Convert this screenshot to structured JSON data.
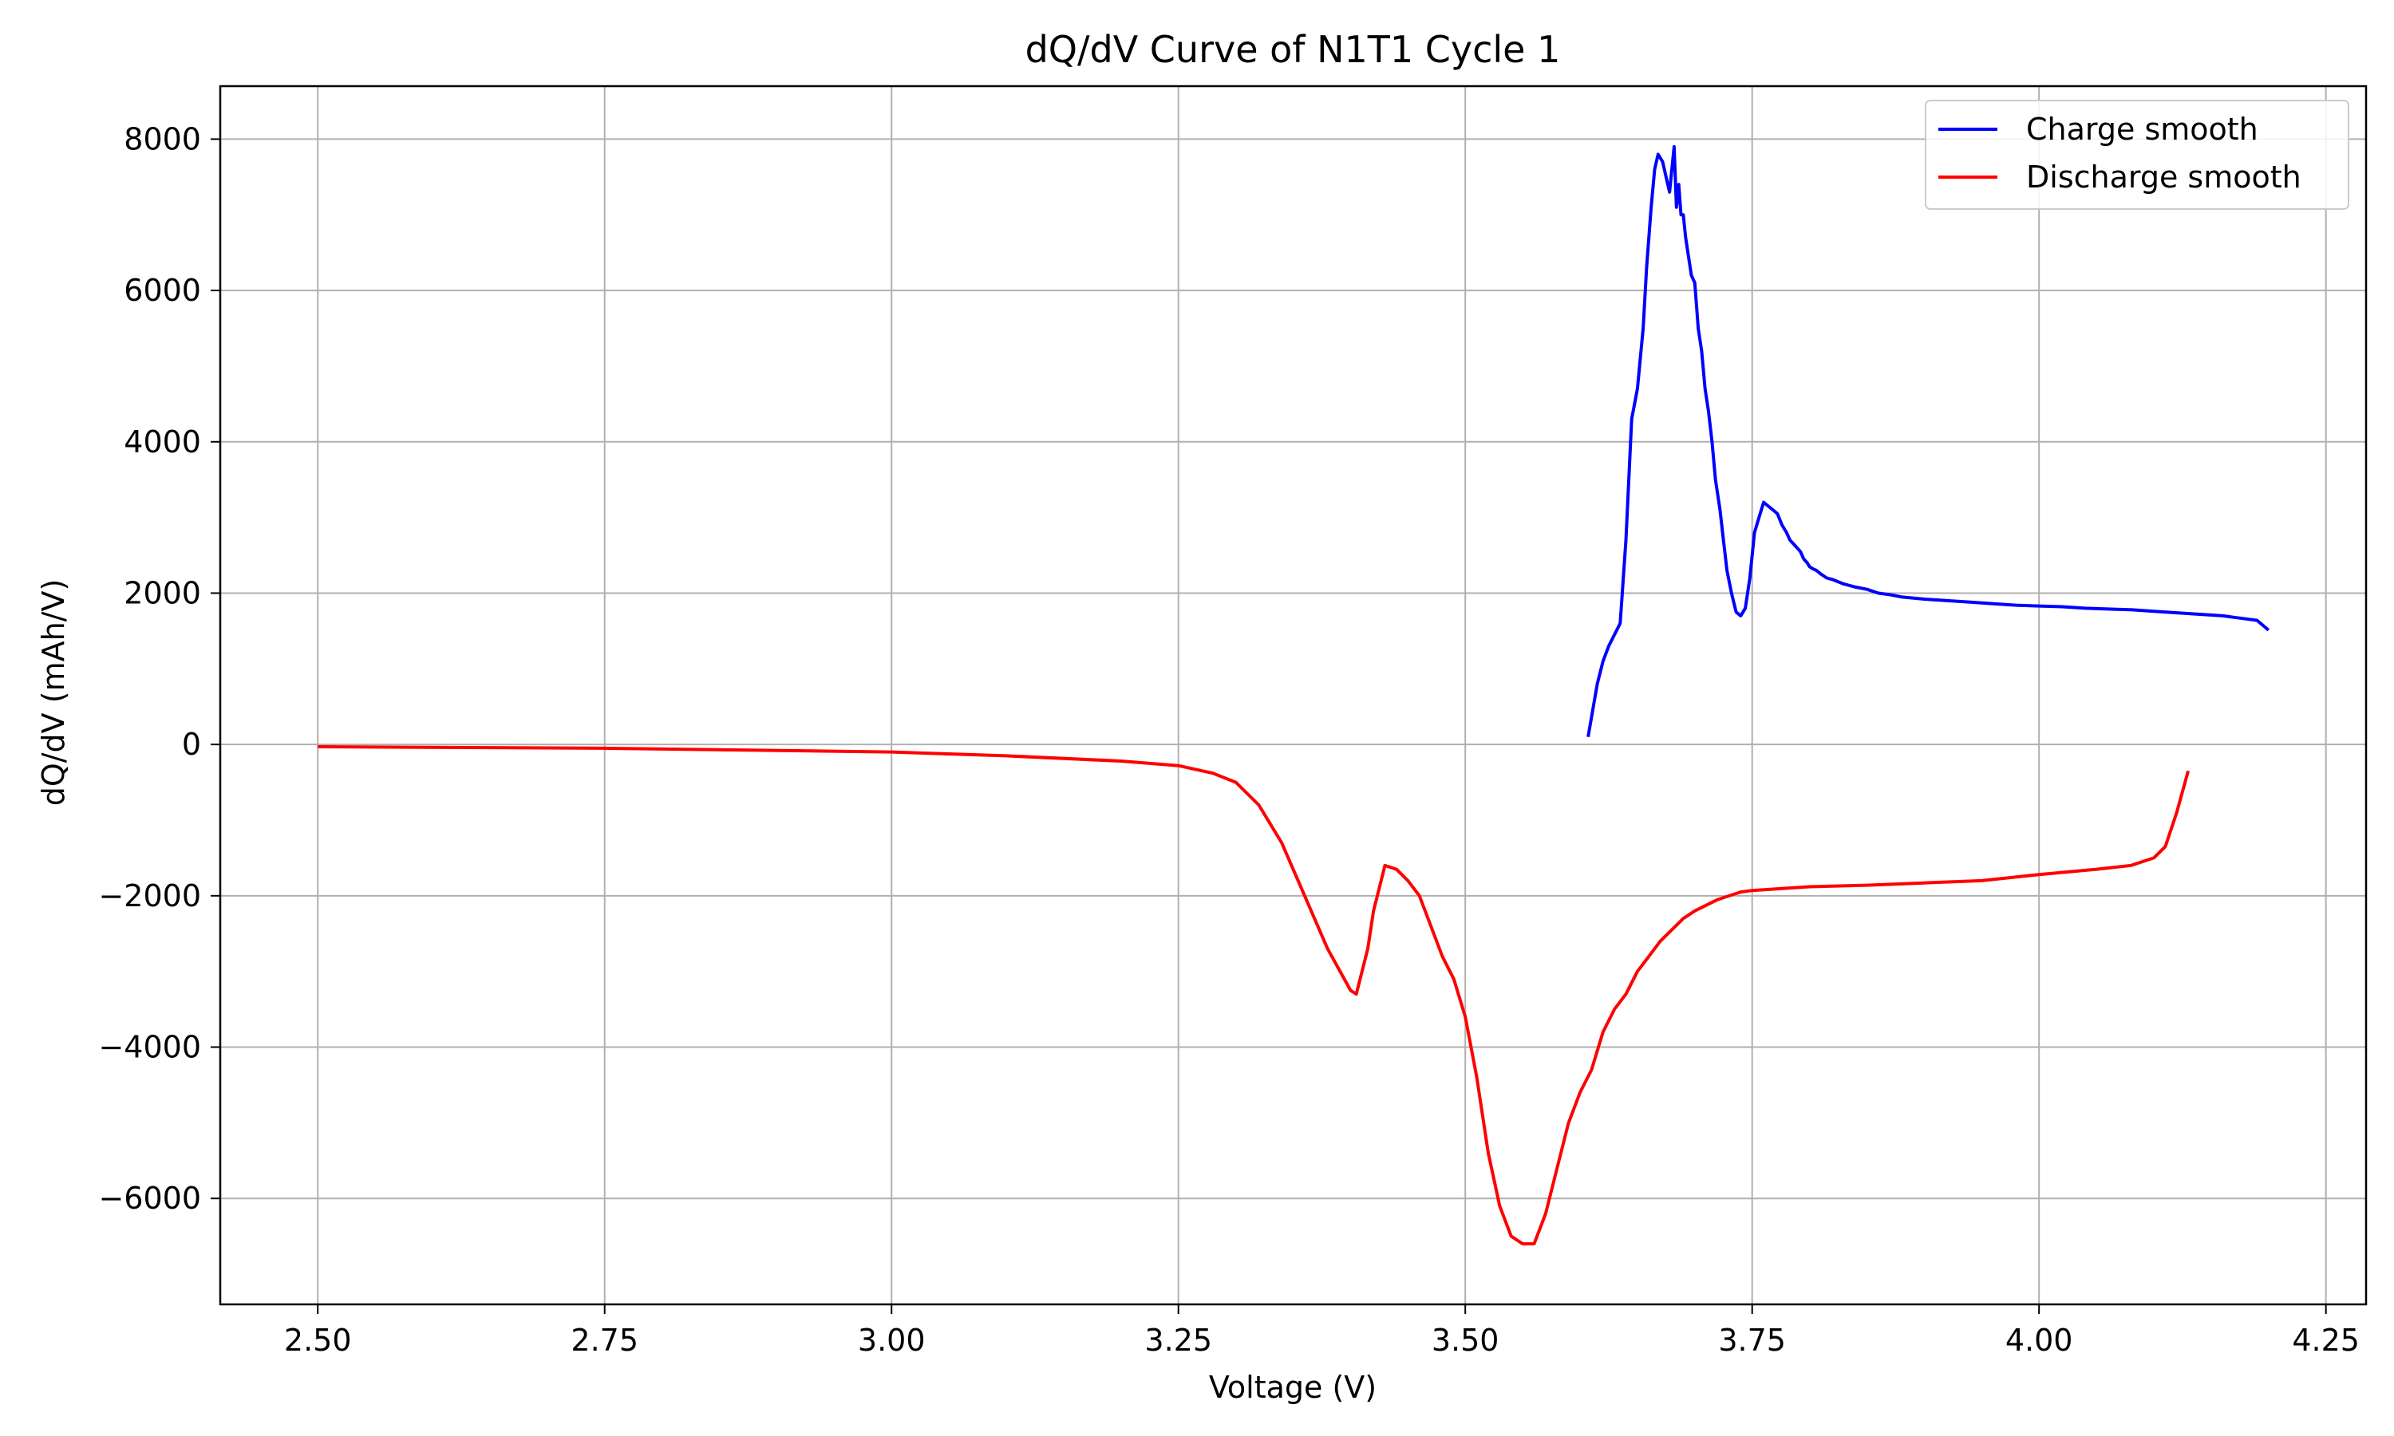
{
  "chart_data": {
    "type": "line",
    "title": "dQ/dV Curve of N1T1 Cycle 1",
    "xlabel": "Voltage (V)",
    "ylabel": "dQ/dV (mAh/V)",
    "xlim": [
      2.415,
      4.285
    ],
    "ylim": [
      -7400,
      8700
    ],
    "xticks": [
      2.5,
      2.75,
      3.0,
      3.25,
      3.5,
      3.75,
      4.0,
      4.25
    ],
    "xtick_labels": [
      "2.50",
      "2.75",
      "3.00",
      "3.25",
      "3.50",
      "3.75",
      "4.00",
      "4.25"
    ],
    "yticks": [
      -6000,
      -4000,
      -2000,
      0,
      2000,
      4000,
      6000,
      8000
    ],
    "ytick_labels": [
      "−6000",
      "−4000",
      "−2000",
      "0",
      "2000",
      "4000",
      "6000",
      "8000"
    ],
    "grid": true,
    "legend_position": "top-right",
    "series": [
      {
        "name": "Charge smooth",
        "color": "#0000ff",
        "x": [
          3.607,
          3.615,
          3.62,
          3.625,
          3.635,
          3.64,
          3.645,
          3.65,
          3.655,
          3.658,
          3.662,
          3.665,
          3.668,
          3.672,
          3.675,
          3.678,
          3.682,
          3.684,
          3.686,
          3.688,
          3.69,
          3.692,
          3.694,
          3.697,
          3.7,
          3.703,
          3.706,
          3.709,
          3.712,
          3.715,
          3.718,
          3.722,
          3.725,
          3.728,
          3.732,
          3.736,
          3.74,
          3.744,
          3.748,
          3.752,
          3.756,
          3.76,
          3.764,
          3.768,
          3.772,
          3.776,
          3.78,
          3.783,
          3.786,
          3.789,
          3.792,
          3.795,
          3.798,
          3.8,
          3.803,
          3.806,
          3.81,
          3.815,
          3.82,
          3.825,
          3.83,
          3.84,
          3.85,
          3.86,
          3.87,
          3.88,
          3.9,
          3.92,
          3.94,
          3.96,
          3.98,
          4.0,
          4.02,
          4.04,
          4.06,
          4.08,
          4.1,
          4.12,
          4.14,
          4.16,
          4.17,
          4.18,
          4.19,
          4.2
        ],
        "y": [
          100,
          800,
          1100,
          1300,
          1600,
          2700,
          4300,
          4700,
          5500,
          6300,
          7100,
          7600,
          7800,
          7700,
          7500,
          7300,
          7900,
          7100,
          7400,
          7000,
          7000,
          6700,
          6500,
          6200,
          6100,
          5500,
          5200,
          4700,
          4400,
          4000,
          3500,
          3100,
          2700,
          2300,
          2000,
          1750,
          1700,
          1800,
          2200,
          2800,
          3000,
          3200,
          3150,
          3100,
          3050,
          2900,
          2800,
          2700,
          2650,
          2600,
          2550,
          2450,
          2400,
          2350,
          2320,
          2300,
          2250,
          2200,
          2180,
          2150,
          2120,
          2080,
          2050,
          2000,
          1980,
          1950,
          1920,
          1900,
          1880,
          1860,
          1840,
          1830,
          1820,
          1800,
          1790,
          1780,
          1760,
          1740,
          1720,
          1700,
          1680,
          1660,
          1640,
          1510
        ]
      },
      {
        "name": "Discharge smooth",
        "color": "#ff0000",
        "x": [
          2.5,
          2.75,
          3.0,
          3.1,
          3.2,
          3.25,
          3.28,
          3.3,
          3.32,
          3.34,
          3.36,
          3.38,
          3.4,
          3.405,
          3.415,
          3.42,
          3.43,
          3.44,
          3.45,
          3.46,
          3.47,
          3.48,
          3.49,
          3.5,
          3.51,
          3.52,
          3.53,
          3.54,
          3.55,
          3.56,
          3.57,
          3.58,
          3.59,
          3.6,
          3.61,
          3.62,
          3.63,
          3.64,
          3.65,
          3.66,
          3.67,
          3.68,
          3.69,
          3.7,
          3.72,
          3.74,
          3.75,
          3.78,
          3.8,
          3.85,
          3.9,
          3.95,
          4.0,
          4.05,
          4.08,
          4.1,
          4.11,
          4.12,
          4.13
        ],
        "y": [
          -30,
          -50,
          -100,
          -150,
          -220,
          -280,
          -380,
          -500,
          -800,
          -1300,
          -2000,
          -2700,
          -3250,
          -3300,
          -2700,
          -2200,
          -1600,
          -1650,
          -1800,
          -2000,
          -2400,
          -2800,
          -3100,
          -3600,
          -4400,
          -5400,
          -6100,
          -6500,
          -6600,
          -6600,
          -6200,
          -5600,
          -5000,
          -4600,
          -4300,
          -3800,
          -3500,
          -3300,
          -3000,
          -2800,
          -2600,
          -2450,
          -2300,
          -2200,
          -2050,
          -1950,
          -1930,
          -1900,
          -1880,
          -1860,
          -1830,
          -1800,
          -1720,
          -1650,
          -1600,
          -1500,
          -1350,
          -900,
          -350
        ]
      }
    ]
  }
}
